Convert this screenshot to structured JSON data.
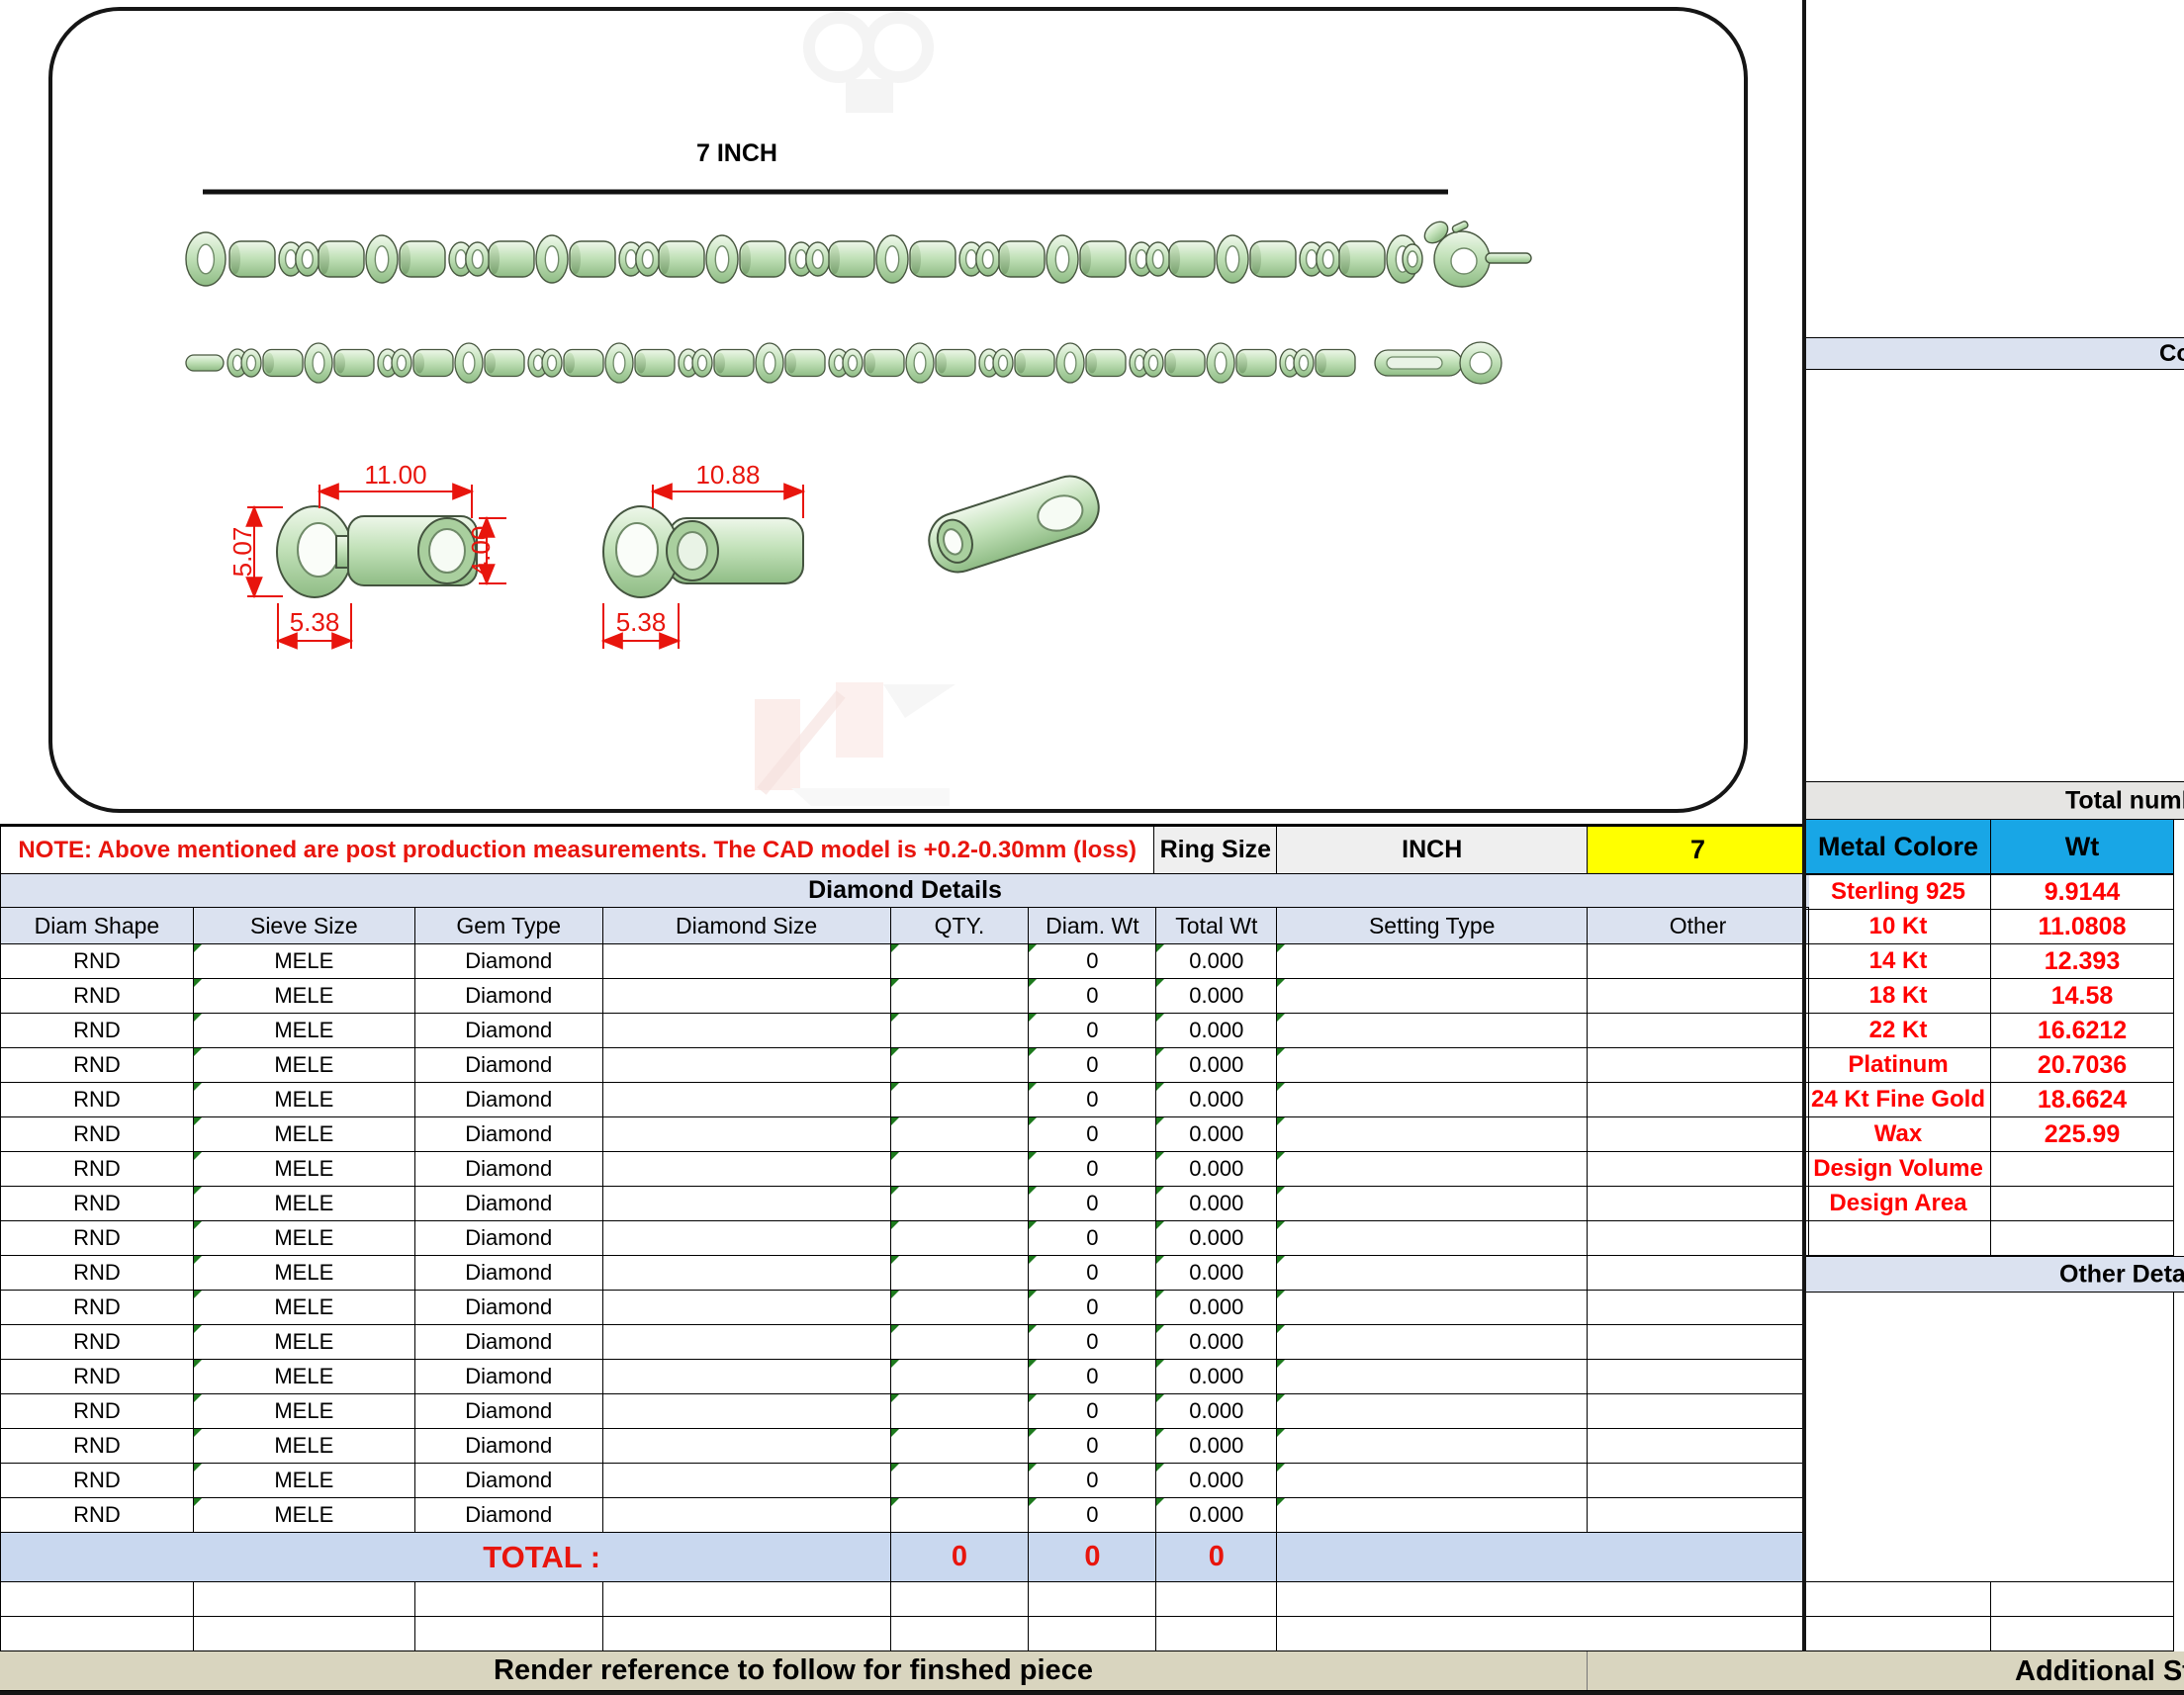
{
  "image_panel": {
    "length_label": "7 INCH",
    "dimensions": {
      "link1_length": "11.00",
      "link1_height": "5.07",
      "link1_ring_width": "5.38",
      "link1_bore": "4.00",
      "link2_length": "10.88",
      "link2_ring_width": "5.38"
    }
  },
  "note_bar": {
    "note": "NOTE: Above mentioned are post production measurements. The CAD model is +0.2-0.30mm (loss)",
    "ring_size_label": "Ring Size",
    "ring_size_unit": "INCH",
    "ring_size_value": "7"
  },
  "diamond_table": {
    "title": "Diamond Details",
    "columns": [
      "Diam Shape",
      "Sieve Size",
      "Gem Type",
      "Diamond Size",
      "QTY.",
      "Diam. Wt",
      "Total Wt",
      "Setting Type",
      "Other"
    ],
    "rows": [
      [
        "RND",
        "MELE",
        "Diamond",
        "",
        "",
        "0",
        "0.000",
        "",
        ""
      ],
      [
        "RND",
        "MELE",
        "Diamond",
        "",
        "",
        "0",
        "0.000",
        "",
        ""
      ],
      [
        "RND",
        "MELE",
        "Diamond",
        "",
        "",
        "0",
        "0.000",
        "",
        ""
      ],
      [
        "RND",
        "MELE",
        "Diamond",
        "",
        "",
        "0",
        "0.000",
        "",
        ""
      ],
      [
        "RND",
        "MELE",
        "Diamond",
        "",
        "",
        "0",
        "0.000",
        "",
        ""
      ],
      [
        "RND",
        "MELE",
        "Diamond",
        "",
        "",
        "0",
        "0.000",
        "",
        ""
      ],
      [
        "RND",
        "MELE",
        "Diamond",
        "",
        "",
        "0",
        "0.000",
        "",
        ""
      ],
      [
        "RND",
        "MELE",
        "Diamond",
        "",
        "",
        "0",
        "0.000",
        "",
        ""
      ],
      [
        "RND",
        "MELE",
        "Diamond",
        "",
        "",
        "0",
        "0.000",
        "",
        ""
      ],
      [
        "RND",
        "MELE",
        "Diamond",
        "",
        "",
        "0",
        "0.000",
        "",
        ""
      ],
      [
        "RND",
        "MELE",
        "Diamond",
        "",
        "",
        "0",
        "0.000",
        "",
        ""
      ],
      [
        "RND",
        "MELE",
        "Diamond",
        "",
        "",
        "0",
        "0.000",
        "",
        ""
      ],
      [
        "RND",
        "MELE",
        "Diamond",
        "",
        "",
        "0",
        "0.000",
        "",
        ""
      ],
      [
        "RND",
        "MELE",
        "Diamond",
        "",
        "",
        "0",
        "0.000",
        "",
        ""
      ],
      [
        "RND",
        "MELE",
        "Diamond",
        "",
        "",
        "0",
        "0.000",
        "",
        ""
      ],
      [
        "RND",
        "MELE",
        "Diamond",
        "",
        "",
        "0",
        "0.000",
        "",
        ""
      ],
      [
        "RND",
        "MELE",
        "Diamond",
        "",
        "",
        "0",
        "0.000",
        "",
        ""
      ]
    ],
    "total_row": {
      "label": "TOTAL :",
      "qty": "0",
      "diam_wt": "0",
      "total_wt": "0"
    }
  },
  "metal_table": {
    "headers": [
      "Metal Colore",
      "Wt"
    ],
    "rows": [
      [
        "Sterling 925",
        "9.9144"
      ],
      [
        "10 Kt",
        "11.0808"
      ],
      [
        "14 Kt",
        "12.393"
      ],
      [
        "18 Kt",
        "14.58"
      ],
      [
        "22 Kt",
        "16.6212"
      ],
      [
        "Platinum",
        "20.7036"
      ],
      [
        "24 Kt Fine Gold",
        "18.6624"
      ],
      [
        "Wax",
        "225.99"
      ],
      [
        "Design Volume",
        ""
      ],
      [
        "Design Area",
        ""
      ],
      [
        "",
        ""
      ]
    ]
  },
  "right_panel": {
    "comments_header": "Co",
    "total_number_header": "Total numb",
    "other_details_header": "Other Deta"
  },
  "footer": {
    "render_note": "Render reference to follow for finshed piece",
    "additional_header": "Additional St"
  },
  "colors": {
    "header_cyan": "#18a6e6",
    "band_blue": "#dbe2f0",
    "total_row_blue": "#c9d8ef",
    "highlight_yellow": "#ffff00",
    "footer_tan": "#d9d5bf",
    "subtotal_gray": "#e6e5e3",
    "cell_gray": "#efefef",
    "alert_red": "#e8150d",
    "value_red": "#ff0000",
    "chain_green": "#c3e2ba"
  }
}
